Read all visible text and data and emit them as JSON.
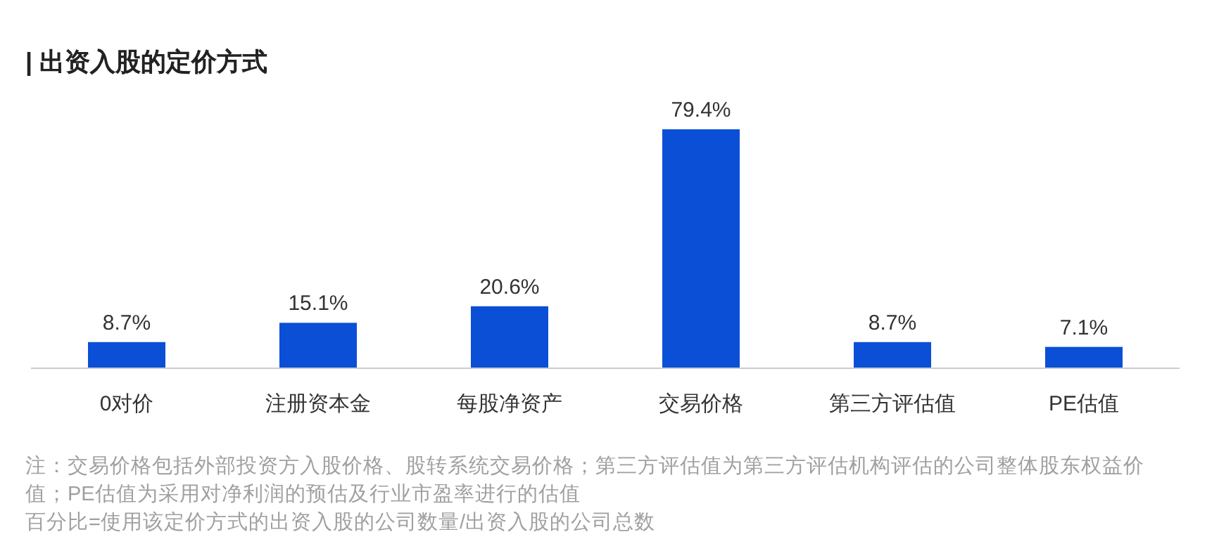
{
  "chart_data": {
    "type": "bar",
    "title": "| 出资入股的定价方式",
    "categories": [
      "0对价",
      "注册资本金",
      "每股净资产",
      "交易价格",
      "第三方评估值",
      "PE估值"
    ],
    "values": [
      8.7,
      15.1,
      20.6,
      79.4,
      8.7,
      7.1
    ],
    "value_labels": [
      "8.7%",
      "15.1%",
      "20.6%",
      "79.4%",
      "8.7%",
      "7.1%"
    ],
    "color": "#0a4fd6",
    "annotations": [
      "注：交易价格包括外部投资方入股价格、股转系统交易价格；第三方评估值为第三方评估机构评估的公司整体股东权益价值；PE估值为采用对净利润的预估及行业市盈率进行的估值",
      "百分比=使用该定价方式的出资入股的公司数量/出资入股的公司总数"
    ]
  }
}
